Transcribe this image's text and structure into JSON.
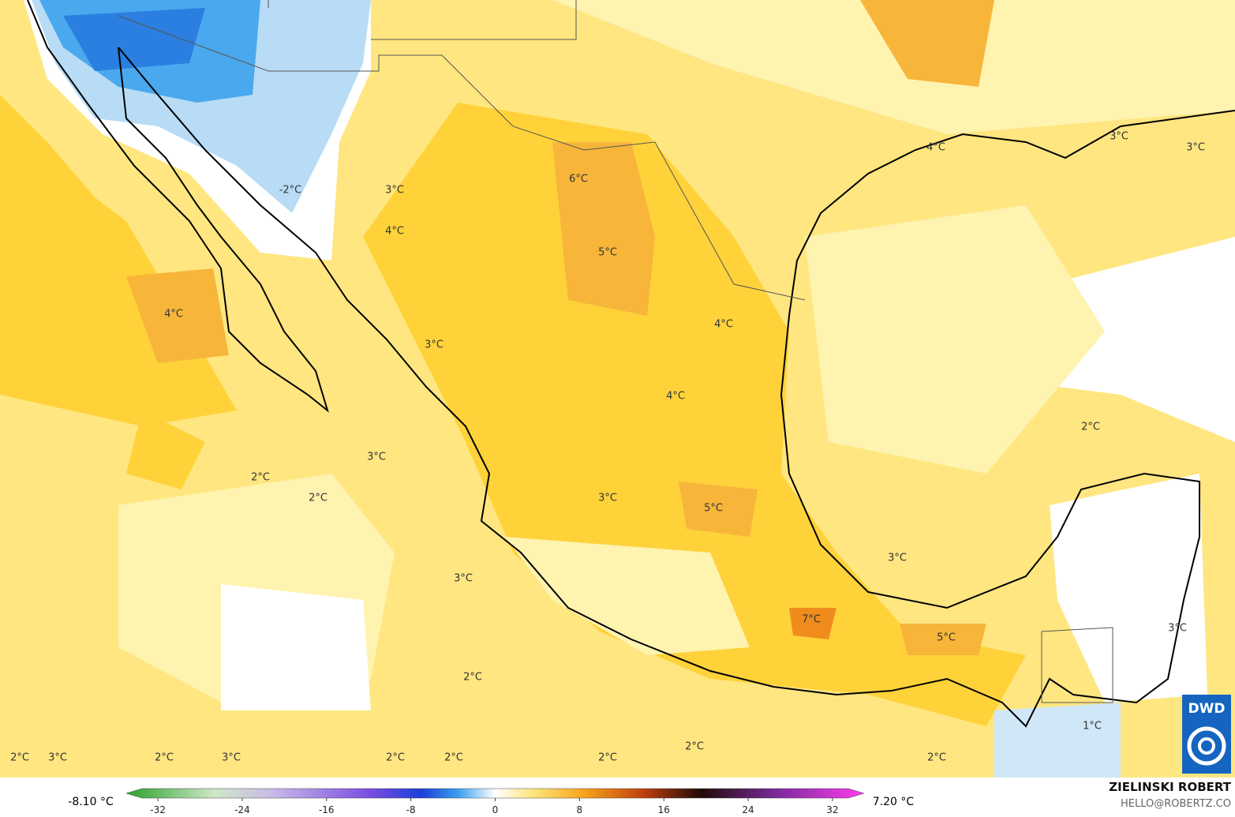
{
  "map": {
    "contour_labels": [
      "-2°C",
      "3°C",
      "4°C",
      "4°C",
      "6°C",
      "5°C",
      "4°C",
      "4°C",
      "3°C",
      "4°C",
      "3°C",
      "3°C",
      "2°C",
      "3°C",
      "2°C",
      "2°C",
      "3°C",
      "5°C",
      "3°C",
      "3°C",
      "7°C",
      "5°C",
      "3°C",
      "2°C",
      "1°C",
      "2°C",
      "2°C",
      "3°C",
      "2°C",
      "3°C",
      "2°C",
      "2°C",
      "2°C",
      "2°C"
    ],
    "colorbar": {
      "min_label": "-8.10 °C",
      "max_label": "7.20 °C",
      "lim": [
        -35,
        35
      ],
      "ticks": [
        -32,
        -24,
        -16,
        -8,
        0,
        8,
        16,
        24,
        32
      ]
    },
    "credit": {
      "author": "ZIELINSKI ROBERT",
      "contact": "HELLO@ROBERTZ.CO",
      "logo": "DWD"
    }
  }
}
